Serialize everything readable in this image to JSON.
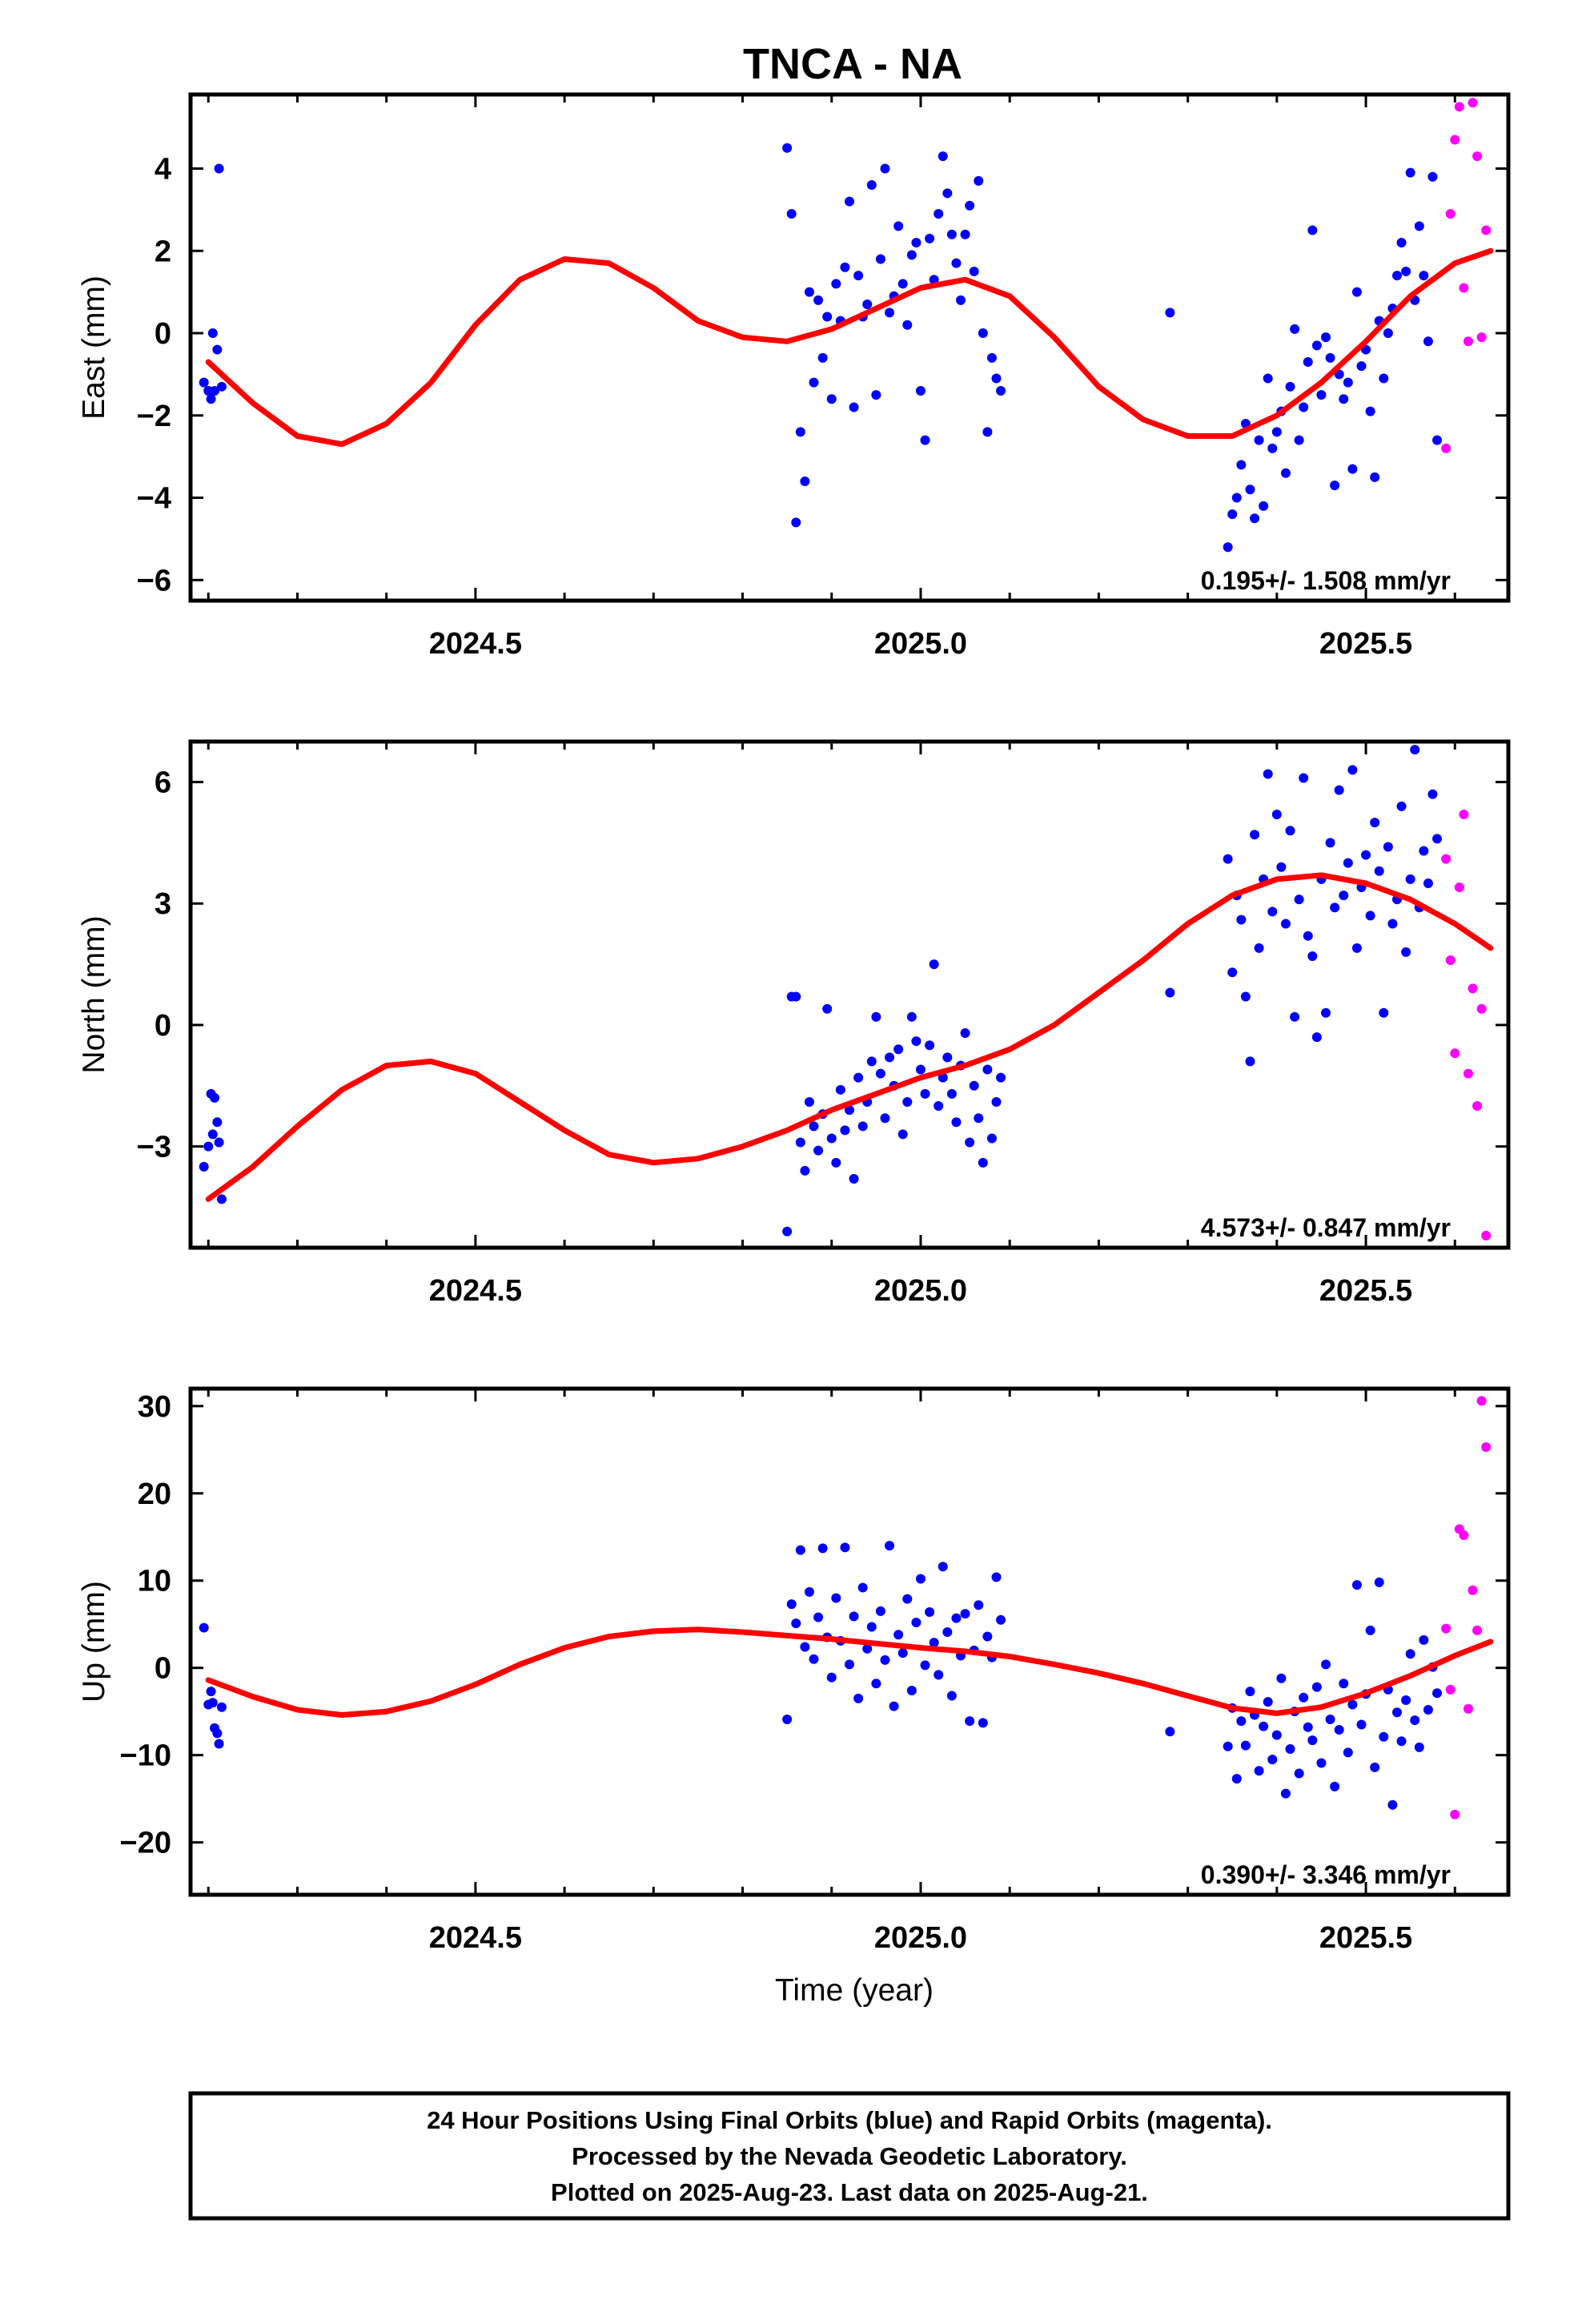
{
  "chart_data": [
    {
      "type": "scatter",
      "title": "TNCA - NA",
      "xlabel": "",
      "ylabel": "East (mm)",
      "xlim": [
        2024.18,
        2025.66
      ],
      "ylim": [
        -6.5,
        5.8
      ],
      "xticks": [
        2024.5,
        2025.0,
        2025.5
      ],
      "xtick_labels": [
        "2024.5",
        "2025.0",
        "2025.5"
      ],
      "yticks": [
        -6,
        -4,
        -2,
        0,
        2,
        4
      ],
      "ytick_labels": [
        "−6",
        "−4",
        "−2",
        "0",
        "2",
        "4"
      ],
      "rate_label": "0.195+/- 1.508 mm/yr",
      "series": [
        {
          "role": "final",
          "color": "#0000ff",
          "x": [
            2024.195,
            2024.2,
            2024.203,
            2024.205,
            2024.207,
            2024.21,
            2024.212,
            2024.215,
            2024.85,
            2024.855,
            2024.86,
            2024.865,
            2024.87,
            2024.875,
            2024.88,
            2024.885,
            2024.89,
            2024.895,
            2024.9,
            2024.905,
            2024.91,
            2024.915,
            2024.92,
            2024.925,
            2024.93,
            2024.935,
            2024.94,
            2024.945,
            2024.95,
            2024.955,
            2024.96,
            2024.965,
            2024.97,
            2024.975,
            2024.98,
            2024.985,
            2024.99,
            2024.995,
            2025.0,
            2025.005,
            2025.01,
            2025.015,
            2025.02,
            2025.025,
            2025.03,
            2025.035,
            2025.04,
            2025.045,
            2025.05,
            2025.055,
            2025.06,
            2025.065,
            2025.07,
            2025.075,
            2025.08,
            2025.085,
            2025.09,
            2025.28,
            2025.345,
            2025.35,
            2025.355,
            2025.36,
            2025.365,
            2025.37,
            2025.375,
            2025.38,
            2025.385,
            2025.39,
            2025.395,
            2025.4,
            2025.405,
            2025.41,
            2025.415,
            2025.42,
            2025.425,
            2025.43,
            2025.435,
            2025.44,
            2025.445,
            2025.45,
            2025.455,
            2025.46,
            2025.465,
            2025.47,
            2025.475,
            2025.48,
            2025.485,
            2025.49,
            2025.495,
            2025.5,
            2025.505,
            2025.51,
            2025.515,
            2025.52,
            2025.525,
            2025.53,
            2025.535,
            2025.54,
            2025.545,
            2025.55,
            2025.555,
            2025.56,
            2025.565,
            2025.57,
            2025.575,
            2025.58
          ],
          "y": [
            -1.2,
            -1.4,
            -1.6,
            0.0,
            -1.4,
            -0.4,
            4.0,
            -1.3,
            4.5,
            2.9,
            -4.6,
            -2.4,
            -3.6,
            1.0,
            -1.2,
            0.8,
            -0.6,
            0.4,
            -1.6,
            1.2,
            0.3,
            1.6,
            3.2,
            -1.8,
            1.4,
            0.4,
            0.7,
            3.6,
            -1.5,
            1.8,
            4.0,
            0.5,
            0.9,
            2.6,
            1.2,
            0.2,
            1.9,
            2.2,
            -1.4,
            -2.6,
            2.3,
            1.3,
            2.9,
            4.3,
            3.4,
            2.4,
            1.7,
            0.8,
            2.4,
            3.1,
            1.5,
            3.7,
            0.0,
            -2.4,
            -0.6,
            -1.1,
            -1.4,
            0.5,
            -5.2,
            -4.4,
            -4.0,
            -3.2,
            -2.2,
            -3.8,
            -4.5,
            -2.6,
            -4.2,
            -1.1,
            -2.8,
            -2.4,
            -1.9,
            -3.4,
            -1.3,
            0.1,
            -2.6,
            -1.8,
            -0.7,
            2.5,
            -0.3,
            -1.5,
            -0.1,
            -0.6,
            -3.7,
            -1.0,
            -1.6,
            -1.2,
            -3.3,
            1.0,
            -0.8,
            -0.4,
            -1.9,
            -3.5,
            0.3,
            -1.1,
            0.0,
            0.6,
            1.4,
            2.2,
            1.5,
            3.9,
            0.8,
            2.6,
            1.4,
            -0.2,
            3.8,
            -2.6
          ]
        },
        {
          "role": "rapid",
          "color": "#ff00ff",
          "x": [
            2025.59,
            2025.595,
            2025.6,
            2025.605,
            2025.61,
            2025.615,
            2025.62,
            2025.625,
            2025.63,
            2025.635
          ],
          "y": [
            -2.8,
            2.9,
            4.7,
            5.5,
            1.1,
            -0.2,
            5.6,
            4.3,
            -0.1,
            2.5
          ]
        }
      ],
      "fit": {
        "color": "#ff0000",
        "x": [
          2024.2,
          2024.25,
          2024.3,
          2024.35,
          2024.4,
          2024.45,
          2024.5,
          2024.55,
          2024.6,
          2024.65,
          2024.7,
          2024.75,
          2024.8,
          2024.85,
          2024.9,
          2024.95,
          2025.0,
          2025.05,
          2025.1,
          2025.15,
          2025.2,
          2025.25,
          2025.3,
          2025.35,
          2025.4,
          2025.45,
          2025.5,
          2025.55,
          2025.6,
          2025.64
        ],
        "y": [
          -0.7,
          -1.7,
          -2.5,
          -2.7,
          -2.2,
          -1.2,
          0.2,
          1.3,
          1.8,
          1.7,
          1.1,
          0.3,
          -0.1,
          -0.2,
          0.1,
          0.6,
          1.1,
          1.3,
          0.9,
          -0.1,
          -1.3,
          -2.1,
          -2.5,
          -2.5,
          -2.0,
          -1.2,
          -0.2,
          0.9,
          1.7,
          2.0
        ]
      }
    },
    {
      "type": "scatter",
      "title": "",
      "xlabel": "",
      "ylabel": "North (mm)",
      "xlim": [
        2024.18,
        2025.66
      ],
      "ylim": [
        -5.5,
        7.0
      ],
      "xticks": [
        2024.5,
        2025.0,
        2025.5
      ],
      "xtick_labels": [
        "2024.5",
        "2025.0",
        "2025.5"
      ],
      "yticks": [
        -3,
        0,
        3,
        6
      ],
      "ytick_labels": [
        "−3",
        "0",
        "3",
        "6"
      ],
      "rate_label": "4.573+/- 0.847 mm/yr",
      "series": [
        {
          "role": "final",
          "color": "#0000ff",
          "x": [
            2024.195,
            2024.2,
            2024.203,
            2024.205,
            2024.207,
            2024.21,
            2024.212,
            2024.215,
            2024.85,
            2024.855,
            2024.86,
            2024.865,
            2024.87,
            2024.875,
            2024.88,
            2024.885,
            2024.89,
            2024.895,
            2024.9,
            2024.905,
            2024.91,
            2024.915,
            2024.92,
            2024.925,
            2024.93,
            2024.935,
            2024.94,
            2024.945,
            2024.95,
            2024.955,
            2024.96,
            2024.965,
            2024.97,
            2024.975,
            2024.98,
            2024.985,
            2024.99,
            2024.995,
            2025.0,
            2025.005,
            2025.01,
            2025.015,
            2025.02,
            2025.025,
            2025.03,
            2025.035,
            2025.04,
            2025.045,
            2025.05,
            2025.055,
            2025.06,
            2025.065,
            2025.07,
            2025.075,
            2025.08,
            2025.085,
            2025.09,
            2025.28,
            2025.345,
            2025.35,
            2025.355,
            2025.36,
            2025.365,
            2025.37,
            2025.375,
            2025.38,
            2025.385,
            2025.39,
            2025.395,
            2025.4,
            2025.405,
            2025.41,
            2025.415,
            2025.42,
            2025.425,
            2025.43,
            2025.435,
            2025.44,
            2025.445,
            2025.45,
            2025.455,
            2025.46,
            2025.465,
            2025.47,
            2025.475,
            2025.48,
            2025.485,
            2025.49,
            2025.495,
            2025.5,
            2025.505,
            2025.51,
            2025.515,
            2025.52,
            2025.525,
            2025.53,
            2025.535,
            2025.54,
            2025.545,
            2025.55,
            2025.555,
            2025.56,
            2025.565,
            2025.57,
            2025.575,
            2025.58
          ],
          "y": [
            -3.5,
            -3.0,
            -1.7,
            -2.7,
            -1.8,
            -2.4,
            -2.9,
            -4.3,
            -5.1,
            0.7,
            0.7,
            -2.9,
            -3.6,
            -1.9,
            -2.5,
            -3.1,
            -2.2,
            0.4,
            -2.8,
            -3.4,
            -1.6,
            -2.6,
            -2.1,
            -3.8,
            -1.3,
            -2.5,
            -1.9,
            -0.9,
            0.2,
            -1.2,
            -2.3,
            -0.8,
            -1.5,
            -0.6,
            -2.7,
            -1.9,
            0.2,
            -0.4,
            -1.1,
            -1.7,
            -0.5,
            1.5,
            -2.0,
            -1.3,
            -0.8,
            -1.7,
            -2.4,
            -1.0,
            -0.2,
            -2.9,
            -1.5,
            -2.3,
            -3.4,
            -1.1,
            -2.8,
            -1.9,
            -1.3,
            0.8,
            4.1,
            1.3,
            3.2,
            2.6,
            0.7,
            -0.9,
            4.7,
            1.9,
            3.6,
            6.2,
            2.8,
            5.2,
            3.9,
            2.5,
            4.8,
            0.2,
            3.1,
            6.1,
            2.2,
            1.7,
            -0.3,
            3.6,
            0.3,
            4.5,
            2.9,
            5.8,
            3.2,
            4.0,
            6.3,
            1.9,
            3.4,
            4.2,
            2.7,
            5.0,
            3.8,
            0.3,
            4.4,
            2.5,
            3.1,
            5.4,
            1.8,
            3.6,
            6.8,
            2.9,
            4.3,
            3.5,
            5.7,
            4.6
          ]
        },
        {
          "role": "rapid",
          "color": "#ff00ff",
          "x": [
            2025.59,
            2025.595,
            2025.6,
            2025.605,
            2025.61,
            2025.615,
            2025.62,
            2025.625,
            2025.63,
            2025.635
          ],
          "y": [
            4.1,
            1.6,
            -0.7,
            3.4,
            5.2,
            -1.2,
            0.9,
            -2.0,
            0.4,
            -5.2
          ]
        }
      ],
      "fit": {
        "color": "#ff0000",
        "x": [
          2024.2,
          2024.25,
          2024.3,
          2024.35,
          2024.4,
          2024.45,
          2024.5,
          2024.55,
          2024.6,
          2024.65,
          2024.7,
          2024.75,
          2024.8,
          2024.85,
          2024.9,
          2024.95,
          2025.0,
          2025.05,
          2025.1,
          2025.15,
          2025.2,
          2025.25,
          2025.3,
          2025.35,
          2025.4,
          2025.45,
          2025.5,
          2025.55,
          2025.6,
          2025.64
        ],
        "y": [
          -4.3,
          -3.5,
          -2.5,
          -1.6,
          -1.0,
          -0.9,
          -1.2,
          -1.9,
          -2.6,
          -3.2,
          -3.4,
          -3.3,
          -3.0,
          -2.6,
          -2.1,
          -1.7,
          -1.3,
          -1.0,
          -0.6,
          0.0,
          0.8,
          1.6,
          2.5,
          3.2,
          3.6,
          3.7,
          3.5,
          3.1,
          2.5,
          1.9
        ]
      }
    },
    {
      "type": "scatter",
      "title": "",
      "xlabel": "Time (year)",
      "ylabel": "Up (mm)",
      "xlim": [
        2024.18,
        2025.66
      ],
      "ylim": [
        -26,
        32
      ],
      "xticks": [
        2024.5,
        2025.0,
        2025.5
      ],
      "xtick_labels": [
        "2024.5",
        "2025.0",
        "2025.5"
      ],
      "yticks": [
        -20,
        -10,
        0,
        10,
        20,
        30
      ],
      "ytick_labels": [
        "−20",
        "−10",
        "0",
        "10",
        "20",
        "30"
      ],
      "rate_label": "0.390+/- 3.346 mm/yr",
      "series": [
        {
          "role": "final",
          "color": "#0000ff",
          "x": [
            2024.195,
            2024.2,
            2024.203,
            2024.205,
            2024.207,
            2024.21,
            2024.212,
            2024.215,
            2024.85,
            2024.855,
            2024.86,
            2024.865,
            2024.87,
            2024.875,
            2024.88,
            2024.885,
            2024.89,
            2024.895,
            2024.9,
            2024.905,
            2024.91,
            2024.915,
            2024.92,
            2024.925,
            2024.93,
            2024.935,
            2024.94,
            2024.945,
            2024.95,
            2024.955,
            2024.96,
            2024.965,
            2024.97,
            2024.975,
            2024.98,
            2024.985,
            2024.99,
            2024.995,
            2025.0,
            2025.005,
            2025.01,
            2025.015,
            2025.02,
            2025.025,
            2025.03,
            2025.035,
            2025.04,
            2025.045,
            2025.05,
            2025.055,
            2025.06,
            2025.065,
            2025.07,
            2025.075,
            2025.08,
            2025.085,
            2025.09,
            2025.28,
            2025.345,
            2025.35,
            2025.355,
            2025.36,
            2025.365,
            2025.37,
            2025.375,
            2025.38,
            2025.385,
            2025.39,
            2025.395,
            2025.4,
            2025.405,
            2025.41,
            2025.415,
            2025.42,
            2025.425,
            2025.43,
            2025.435,
            2025.44,
            2025.445,
            2025.45,
            2025.455,
            2025.46,
            2025.465,
            2025.47,
            2025.475,
            2025.48,
            2025.485,
            2025.49,
            2025.495,
            2025.5,
            2025.505,
            2025.51,
            2025.515,
            2025.52,
            2025.525,
            2025.53,
            2025.535,
            2025.54,
            2025.545,
            2025.55,
            2025.555,
            2025.56,
            2025.565,
            2025.57,
            2025.575,
            2025.58
          ],
          "y": [
            4.6,
            -4.2,
            -2.7,
            -4.0,
            -6.9,
            -7.5,
            -8.7,
            -4.5,
            -5.9,
            7.3,
            5.1,
            13.5,
            2.4,
            8.7,
            1.0,
            5.8,
            13.7,
            3.5,
            -1.1,
            8.0,
            3.1,
            13.8,
            0.4,
            5.9,
            -3.5,
            9.2,
            2.2,
            4.7,
            -1.8,
            6.5,
            0.9,
            14.0,
            -4.4,
            3.8,
            1.7,
            7.9,
            -2.6,
            5.2,
            10.2,
            0.3,
            6.4,
            2.9,
            -0.8,
            11.6,
            4.1,
            -3.2,
            5.7,
            1.4,
            6.2,
            -6.1,
            2.0,
            7.2,
            -6.3,
            3.6,
            1.2,
            10.4,
            5.5,
            -7.3,
            -9.0,
            -4.6,
            -12.7,
            -6.1,
            -8.9,
            -2.7,
            -5.4,
            -11.8,
            -6.7,
            -3.9,
            -10.5,
            -7.7,
            -1.2,
            -14.4,
            -9.3,
            -5.0,
            -12.1,
            -3.4,
            -6.8,
            -8.3,
            -2.2,
            -10.9,
            0.4,
            -5.9,
            -13.6,
            -7.1,
            -1.8,
            -9.7,
            -4.2,
            9.5,
            -6.5,
            -3.0,
            4.3,
            -11.4,
            9.8,
            -7.9,
            -2.5,
            -15.7,
            -5.1,
            -8.4,
            -3.7,
            1.6,
            -6.0,
            -9.1,
            3.2,
            -4.8,
            0.1,
            -2.9
          ]
        },
        {
          "role": "rapid",
          "color": "#ff00ff",
          "x": [
            2025.59,
            2025.595,
            2025.6,
            2025.605,
            2025.61,
            2025.615,
            2025.62,
            2025.625,
            2025.63,
            2025.635
          ],
          "y": [
            4.5,
            -2.5,
            -16.8,
            15.9,
            15.2,
            -4.7,
            8.9,
            4.3,
            30.6,
            25.3
          ]
        }
      ],
      "fit": {
        "color": "#ff0000",
        "x": [
          2024.2,
          2024.25,
          2024.3,
          2024.35,
          2024.4,
          2024.45,
          2024.5,
          2024.55,
          2024.6,
          2024.65,
          2024.7,
          2024.75,
          2024.8,
          2024.85,
          2024.9,
          2024.95,
          2025.0,
          2025.05,
          2025.1,
          2025.15,
          2025.2,
          2025.25,
          2025.3,
          2025.35,
          2025.4,
          2025.45,
          2025.5,
          2025.55,
          2025.6,
          2025.64
        ],
        "y": [
          -1.4,
          -3.3,
          -4.8,
          -5.4,
          -5.0,
          -3.8,
          -1.9,
          0.4,
          2.3,
          3.6,
          4.2,
          4.4,
          4.1,
          3.7,
          3.3,
          2.8,
          2.3,
          1.9,
          1.3,
          0.4,
          -0.6,
          -1.8,
          -3.2,
          -4.6,
          -5.2,
          -4.5,
          -2.9,
          -0.9,
          1.4,
          3.0
        ]
      }
    }
  ],
  "caption": {
    "line1": "24 Hour Positions Using Final Orbits (blue) and Rapid Orbits (magenta).",
    "line2": "Processed by the Nevada Geodetic Laboratory.",
    "line3": "Plotted on 2025-Aug-23. Last data on 2025-Aug-21."
  }
}
